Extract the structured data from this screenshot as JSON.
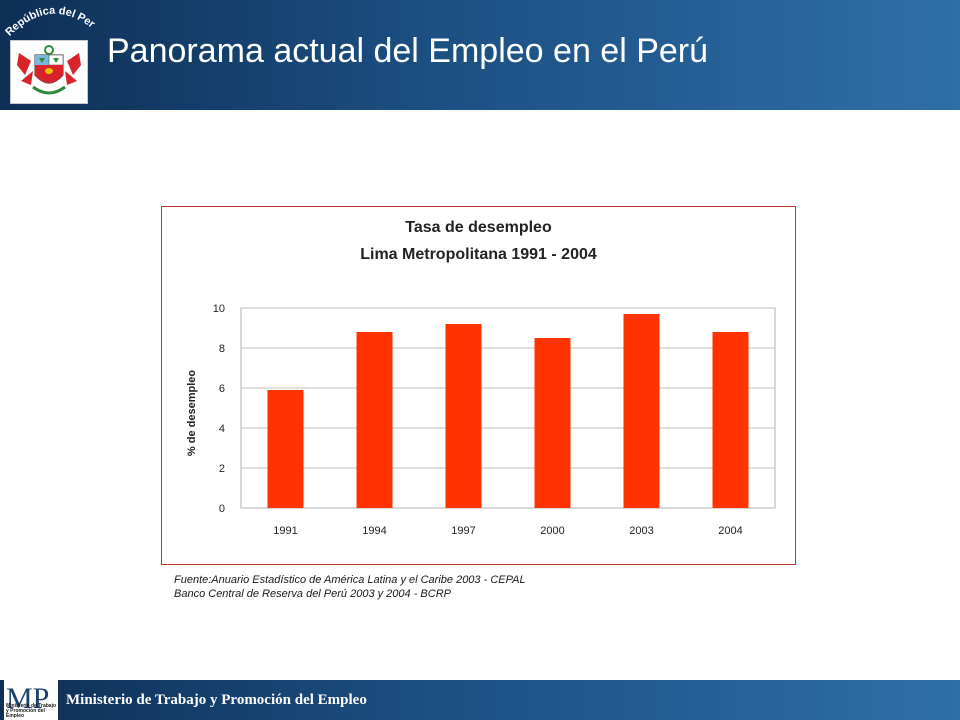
{
  "header": {
    "title": "Panorama actual del Empleo en el Perú",
    "seal_text": "República del Perú"
  },
  "chart_data": {
    "type": "bar",
    "title": "Tasa de desempleo",
    "subtitle": "Lima Metropolitana 1991 - 2004",
    "ylabel": "% de desempleo",
    "xlabel": "",
    "categories": [
      "1991",
      "1994",
      "1997",
      "2000",
      "2003",
      "2004"
    ],
    "values": [
      5.9,
      8.8,
      9.2,
      8.5,
      9.7,
      8.8
    ],
    "ylim": [
      0,
      10
    ],
    "yticks": [
      0,
      2,
      4,
      6,
      8,
      10
    ],
    "grid": true,
    "bar_color": "#ff3300"
  },
  "source": {
    "line1": "Fuente:Anuario Estadístico de América Latina y el Caribe 2003 - CEPAL",
    "line2": "Banco Central de Reserva del Perú 2003 y 2004 - BCRP"
  },
  "footer": {
    "ministry": "Ministerio de Trabajo y Promoción del Empleo",
    "logo_letters": "MP",
    "logo_small": "Ministerio de Trabajo y Promoción del Empleo"
  },
  "colors": {
    "header": "#1c4f82",
    "frame": "#c0392b",
    "bar": "#ff3300"
  }
}
